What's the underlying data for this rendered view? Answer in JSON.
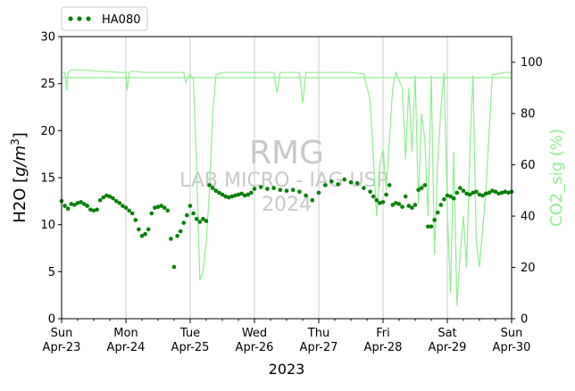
{
  "chart_data": {
    "type": "scatter",
    "xlabel": "2023",
    "ylabel_left": "H2O [g/m³]",
    "ylabel_left_parts": {
      "base": "H2O [",
      "unit": "g/m",
      "exp": "3",
      "close": "]"
    },
    "ylabel_right": "CO2_sig (%)",
    "ylim_left": [
      0,
      30
    ],
    "ylim_right": [
      0,
      110
    ],
    "yticks_left": [
      "0",
      "5",
      "10",
      "15",
      "20",
      "25",
      "30"
    ],
    "yticks_right": [
      "0",
      "20",
      "40",
      "60",
      "80",
      "100"
    ],
    "xlim_days": [
      0,
      7
    ],
    "xticks": [
      {
        "day": "Sun",
        "date": "Apr-23"
      },
      {
        "day": "Mon",
        "date": "Apr-24"
      },
      {
        "day": "Tue",
        "date": "Apr-25"
      },
      {
        "day": "Wed",
        "date": "Apr-26"
      },
      {
        "day": "Thu",
        "date": "Apr-27"
      },
      {
        "day": "Fri",
        "date": "Apr-28"
      },
      {
        "day": "Sat",
        "date": "Apr-29"
      },
      {
        "day": "Sun",
        "date": "Apr-30"
      }
    ],
    "grid": "vertical",
    "legend": {
      "placement": "top-left-outside",
      "entries": [
        "HA080"
      ]
    },
    "watermark": [
      "RMG",
      "LAB MICRO - IAG USP",
      "2024"
    ],
    "h_reference_line_right": 94,
    "series": [
      {
        "name": "HA080",
        "axis": "left",
        "marker": "dot",
        "color": "#008000",
        "x": [
          0.0,
          0.05,
          0.1,
          0.15,
          0.2,
          0.25,
          0.3,
          0.35,
          0.4,
          0.45,
          0.5,
          0.55,
          0.6,
          0.65,
          0.7,
          0.75,
          0.8,
          0.85,
          0.9,
          0.95,
          1.0,
          1.05,
          1.1,
          1.15,
          1.2,
          1.25,
          1.3,
          1.35,
          1.4,
          1.45,
          1.5,
          1.55,
          1.6,
          1.65,
          1.7,
          1.75,
          1.8,
          1.85,
          1.9,
          1.95,
          2.0,
          2.05,
          2.1,
          2.15,
          2.2,
          2.25,
          2.3,
          2.35,
          2.4,
          2.45,
          2.5,
          2.55,
          2.6,
          2.65,
          2.7,
          2.75,
          2.8,
          2.85,
          2.9,
          2.95,
          3.0,
          3.1,
          3.2,
          3.3,
          3.4,
          3.5,
          3.6,
          3.7,
          3.8,
          3.9,
          4.0,
          4.1,
          4.2,
          4.3,
          4.4,
          4.5,
          4.6,
          4.7,
          4.8,
          4.85,
          4.9,
          4.95,
          5.0,
          5.05,
          5.1,
          5.15,
          5.2,
          5.25,
          5.3,
          5.35,
          5.4,
          5.45,
          5.5,
          5.55,
          5.6,
          5.65,
          5.7,
          5.75,
          5.8,
          5.85,
          5.9,
          5.95,
          6.0,
          6.05,
          6.1,
          6.15,
          6.2,
          6.25,
          6.3,
          6.35,
          6.4,
          6.45,
          6.5,
          6.55,
          6.6,
          6.65,
          6.7,
          6.75,
          6.8,
          6.85,
          6.9,
          6.95,
          7.0
        ],
        "y": [
          12.5,
          12.0,
          11.7,
          12.2,
          12.1,
          12.3,
          12.4,
          12.2,
          12.0,
          11.6,
          11.5,
          11.6,
          12.6,
          12.9,
          13.1,
          13.0,
          12.8,
          12.5,
          12.3,
          12.0,
          11.8,
          11.5,
          11.2,
          10.5,
          9.5,
          8.8,
          9.0,
          9.5,
          11.2,
          11.8,
          11.9,
          12.0,
          11.8,
          11.5,
          8.5,
          5.5,
          8.8,
          9.3,
          10.2,
          11.0,
          12.0,
          11.2,
          10.6,
          10.3,
          10.6,
          10.4,
          14.2,
          13.9,
          13.6,
          13.4,
          13.2,
          13.0,
          12.9,
          13.0,
          13.1,
          13.2,
          13.3,
          13.1,
          13.2,
          13.4,
          13.8,
          14.0,
          13.8,
          13.9,
          13.7,
          13.6,
          13.7,
          13.5,
          13.1,
          12.6,
          13.4,
          14.2,
          14.6,
          14.3,
          14.8,
          14.5,
          14.4,
          13.9,
          13.5,
          13.0,
          12.6,
          12.3,
          12.4,
          13.2,
          14.2,
          12.1,
          12.3,
          12.2,
          11.9,
          13.0,
          12.0,
          11.8,
          12.1,
          13.7,
          13.9,
          14.2,
          9.8,
          9.8,
          10.5,
          11.3,
          12.1,
          12.7,
          13.1,
          13.0,
          12.8,
          13.4,
          13.9,
          13.6,
          13.3,
          13.2,
          13.4,
          13.5,
          13.2,
          13.1,
          13.3,
          13.4,
          13.6,
          13.5,
          13.3,
          13.4,
          13.5,
          13.4,
          13.5
        ]
      },
      {
        "name": "CO2_sig",
        "axis": "right",
        "marker": "line",
        "color": "#90ee90",
        "x": [
          0.0,
          0.05,
          0.08,
          0.1,
          0.15,
          0.3,
          0.6,
          0.9,
          1.0,
          1.02,
          1.05,
          1.1,
          1.3,
          1.8,
          1.9,
          1.93,
          2.0,
          2.05,
          2.1,
          2.15,
          2.2,
          2.25,
          2.3,
          2.35,
          2.4,
          2.5,
          2.6,
          2.8,
          3.0,
          3.2,
          3.3,
          3.35,
          3.4,
          3.5,
          3.7,
          3.75,
          3.8,
          3.9,
          4.2,
          4.5,
          4.7,
          4.8,
          4.9,
          4.95,
          5.0,
          5.05,
          5.1,
          5.15,
          5.2,
          5.3,
          5.35,
          5.4,
          5.45,
          5.5,
          5.55,
          5.6,
          5.65,
          5.7,
          5.75,
          5.8,
          5.85,
          5.9,
          5.95,
          6.0,
          6.05,
          6.1,
          6.15,
          6.2,
          6.25,
          6.3,
          6.35,
          6.4,
          6.45,
          6.5,
          6.55,
          6.6,
          6.7,
          6.9,
          7.0
        ],
        "y": [
          96.0,
          96.0,
          89.0,
          96.0,
          97.0,
          97.0,
          96.5,
          96.0,
          96.0,
          89.0,
          96.0,
          96.5,
          96.0,
          96.0,
          96.0,
          92.0,
          95.5,
          93.0,
          60.0,
          15.0,
          18.0,
          30.0,
          50.0,
          80.0,
          95.0,
          96.0,
          96.0,
          96.0,
          96.0,
          96.0,
          96.0,
          88.0,
          96.0,
          96.0,
          96.0,
          84.0,
          96.0,
          96.0,
          96.0,
          96.0,
          95.5,
          85.0,
          40.0,
          60.0,
          66.0,
          50.0,
          70.0,
          90.0,
          96.0,
          90.0,
          62.0,
          90.0,
          65.0,
          95.0,
          45.0,
          80.0,
          70.0,
          40.0,
          95.0,
          25.0,
          60.0,
          82.0,
          96.0,
          42.0,
          10.0,
          65.0,
          5.0,
          25.0,
          40.0,
          20.0,
          65.0,
          95.0,
          30.0,
          20.0,
          35.0,
          50.0,
          95.0,
          96.0,
          96.0
        ]
      }
    ]
  }
}
